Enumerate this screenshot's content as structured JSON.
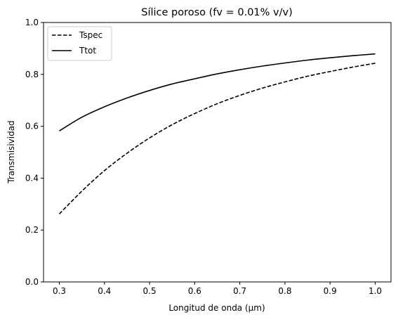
{
  "chart_data": {
    "type": "line",
    "title": "Sílice poroso (fv = 0.01% v/v)",
    "xlabel": "Longitud de onda (μm)",
    "ylabel": "Transmisividad",
    "xlim": [
      0.265,
      1.035
    ],
    "ylim": [
      0.0,
      1.0
    ],
    "xticks": [
      0.3,
      0.4,
      0.5,
      0.6,
      0.7,
      0.8,
      0.9,
      1.0
    ],
    "xtick_labels": [
      "0.3",
      "0.4",
      "0.5",
      "0.6",
      "0.7",
      "0.8",
      "0.9",
      "1.0"
    ],
    "yticks": [
      0.0,
      0.2,
      0.4,
      0.6,
      0.8,
      1.0
    ],
    "ytick_labels": [
      "0.0",
      "0.2",
      "0.4",
      "0.6",
      "0.8",
      "1.0"
    ],
    "grid": false,
    "legend_position": "top-left",
    "x": [
      0.3,
      0.35,
      0.4,
      0.45,
      0.5,
      0.55,
      0.6,
      0.65,
      0.7,
      0.75,
      0.8,
      0.85,
      0.9,
      0.95,
      1.0
    ],
    "series": [
      {
        "name": "Tspec",
        "style": "dashed",
        "color": "#000000",
        "values": [
          0.262,
          0.35,
          0.429,
          0.496,
          0.555,
          0.606,
          0.649,
          0.687,
          0.719,
          0.747,
          0.771,
          0.793,
          0.811,
          0.828,
          0.843
        ]
      },
      {
        "name": "Ttot",
        "style": "solid",
        "color": "#000000",
        "values": [
          0.582,
          0.635,
          0.675,
          0.709,
          0.738,
          0.763,
          0.783,
          0.802,
          0.818,
          0.832,
          0.844,
          0.855,
          0.864,
          0.872,
          0.879
        ]
      }
    ]
  }
}
